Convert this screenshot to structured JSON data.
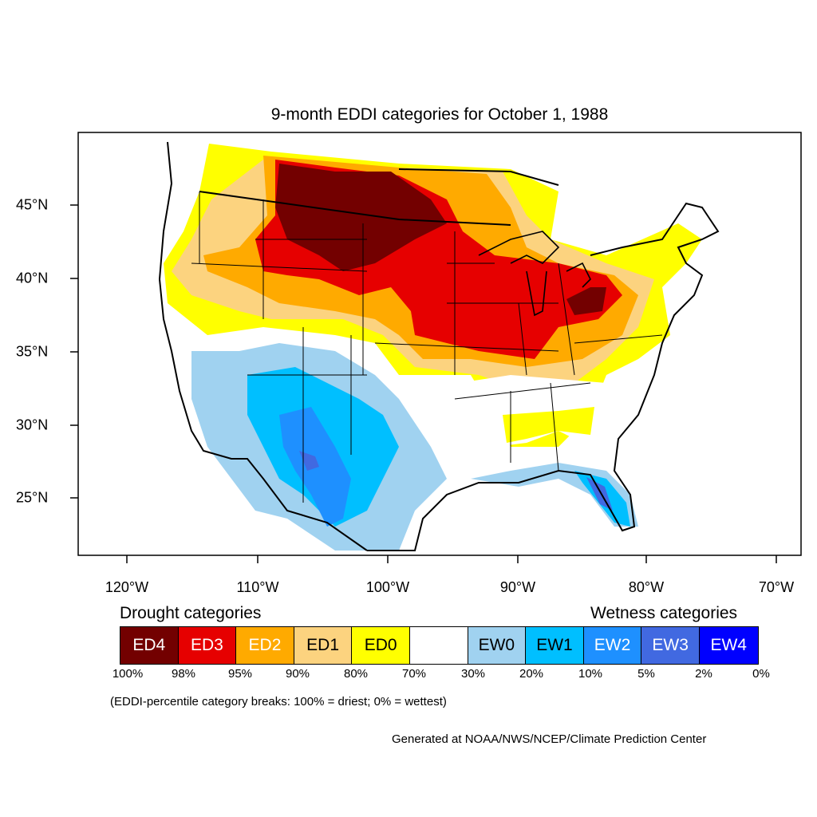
{
  "title": "9-month EDDI categories for October 1, 1988",
  "colors": {
    "ED4": "#730000",
    "ED3": "#e60000",
    "ED2": "#ffaa00",
    "ED1": "#fcd37f",
    "ED0": "#ffff00",
    "neutral": "#ffffff",
    "EW0": "#a0d2f0",
    "EW1": "#00bfff",
    "EW2": "#1e90ff",
    "EW3": "#4169e1",
    "EW4": "#0000ff"
  },
  "axes": {
    "lon_labels": [
      "120°W",
      "110°W",
      "100°W",
      "90°W",
      "80°W",
      "70°W"
    ],
    "lat_labels": [
      "45°N",
      "40°N",
      "35°N",
      "30°N",
      "25°N"
    ]
  },
  "legend": {
    "drought_heading": "Drought categories",
    "wetness_heading": "Wetness categories",
    "swatches": [
      {
        "label": "ED4",
        "color": "#730000",
        "text_color": "#ffffff"
      },
      {
        "label": "ED3",
        "color": "#e60000",
        "text_color": "#ffffff"
      },
      {
        "label": "ED2",
        "color": "#ffaa00",
        "text_color": "#ffffff"
      },
      {
        "label": "ED1",
        "color": "#fcd37f",
        "text_color": "#000000"
      },
      {
        "label": "ED0",
        "color": "#ffff00",
        "text_color": "#000000"
      },
      {
        "label": "",
        "color": "#ffffff",
        "text_color": "#000000"
      },
      {
        "label": "EW0",
        "color": "#a0d2f0",
        "text_color": "#000000"
      },
      {
        "label": "EW1",
        "color": "#00bfff",
        "text_color": "#000000"
      },
      {
        "label": "EW2",
        "color": "#1e90ff",
        "text_color": "#ffffff"
      },
      {
        "label": "EW3",
        "color": "#4169e1",
        "text_color": "#ffffff"
      },
      {
        "label": "EW4",
        "color": "#0000ff",
        "text_color": "#ffffff"
      }
    ],
    "breaks": [
      "100%",
      "98%",
      "95%",
      "90%",
      "80%",
      "70%",
      "30%",
      "20%",
      "10%",
      "5%",
      "2%",
      "0%"
    ]
  },
  "note": "(EDDI-percentile category breaks: 100% = driest; 0% = wettest)",
  "credit": "Generated at NOAA/NWS/NCEP/Climate Prediction Center"
}
